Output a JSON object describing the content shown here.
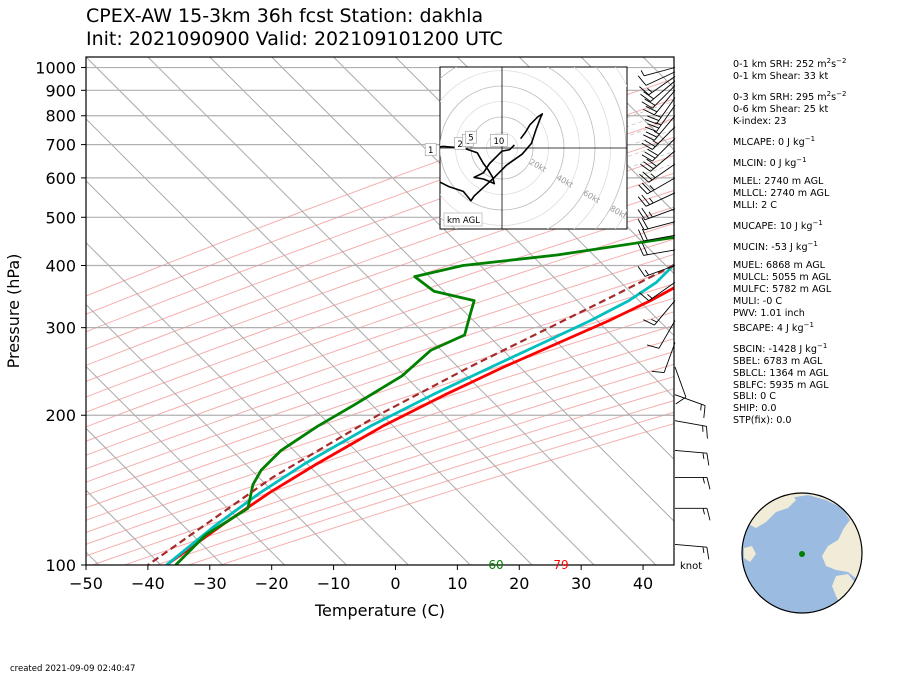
{
  "header": {
    "title_line1": "CPEX-AW 15-3km  36h fcst  Station: dakhla",
    "title_line2": "Init: 2021090900  Valid: 202109101200 UTC"
  },
  "stats": [
    {
      "label": "0-1 km SRH: 252 m",
      "sup": "2",
      "mid": "s",
      "sup2": "−2"
    },
    {
      "label": "0-1 km Shear: 33 kt"
    },
    {
      "label": "0-3 km SRH: 295 m",
      "sup": "2",
      "mid": "s",
      "sup2": "−2",
      "gap": true
    },
    {
      "label": "0-6 km Shear: 25 kt"
    },
    {
      "label": "K-index: 23"
    },
    {
      "label": "MLCAPE: 0 J kg",
      "sup": "−1",
      "gap": true
    },
    {
      "label": "MLCIN: 0 J kg",
      "sup": "−1",
      "gap": true
    },
    {
      "label": "MLEL: 2740 m AGL",
      "gap": true
    },
    {
      "label": "MLLCL: 2740 m AGL"
    },
    {
      "label": "MLLI: 2 C"
    },
    {
      "label": "MUCAPE: 10 J kg",
      "sup": "−1",
      "gap": true
    },
    {
      "label": "MUCIN: -53 J kg",
      "sup": "−1",
      "gap": true
    },
    {
      "label": "MUEL: 6868 m AGL",
      "gap": true
    },
    {
      "label": "MULCL: 5055 m AGL"
    },
    {
      "label": "MULFC: 5782 m AGL"
    },
    {
      "label": "MULI: -0 C"
    },
    {
      "label": "PWV: 1.01 inch"
    },
    {
      "label": "SBCAPE: 4 J kg",
      "sup": "−1"
    },
    {
      "label": "SBCIN: -1428 J kg",
      "sup": "−1",
      "gap": true
    },
    {
      "label": "SBEL: 6783 m AGL"
    },
    {
      "label": "SBLCL: 1364 m AGL"
    },
    {
      "label": "SBLFC: 5935 m AGL"
    },
    {
      "label": "SBLI: 0 C"
    },
    {
      "label": "SHIP: 0.0"
    },
    {
      "label": "STP(fix): 0.0"
    }
  ],
  "footer": {
    "created": "created 2021-09-09 02:40:47"
  },
  "colors": {
    "temperature": "#ff0000",
    "dewpoint": "#008000",
    "wetbulb": "#00bfbf",
    "parcel": "#a52a2a",
    "isotherm": "#aaaaaa",
    "dry_adiabat": "#f4b0b0",
    "moist_adiabat": "#c0c0c0",
    "mixing_ratio": "#8fc98f",
    "globe_ocean": "#9bbbe0",
    "globe_land": "#f0ecd8"
  },
  "chart_data": [
    {
      "type": "line",
      "xlabel": "Temperature (C)",
      "ylabel": "Pressure (hPa)",
      "xlim": [
        -50,
        45
      ],
      "ylim": [
        1050,
        100
      ],
      "y_scale": "log",
      "x_ticks": [
        -50,
        -40,
        -30,
        -20,
        -10,
        0,
        10,
        20,
        30,
        40
      ],
      "y_ticks": [
        100,
        200,
        300,
        400,
        500,
        600,
        700,
        800,
        900,
        1000
      ],
      "skew": "isotherms at 45 degrees",
      "surface_labels": {
        "dewpoint": "60",
        "temperature": "79"
      },
      "wind_unit": "knot",
      "series": [
        {
          "key": "temperature",
          "pressure": [
            985,
            975,
            960,
            940,
            915,
            895,
            870,
            840,
            800,
            760,
            720,
            680,
            640,
            600,
            560,
            520,
            490,
            460,
            430,
            400,
            370,
            340,
            310,
            280,
            250,
            220,
            190,
            160,
            140,
            120,
            100
          ],
          "temp": [
            24.5,
            24.0,
            30.5,
            34.5,
            35.5,
            34.0,
            31.5,
            28.5,
            24.0,
            20.0,
            16.5,
            13.0,
            10.0,
            7.5,
            5.0,
            3.0,
            1.5,
            0.5,
            0.0,
            1.5,
            1.0,
            -1.5,
            -5.0,
            -9.5,
            -14.5,
            -19.5,
            -24.5,
            -29.0,
            -32.0,
            -34.5,
            -37.0
          ]
        },
        {
          "key": "wetbulb",
          "pressure": [
            985,
            970,
            945,
            915,
            880,
            850,
            810,
            770,
            730,
            690,
            650,
            610,
            570,
            535,
            500,
            480,
            455,
            430,
            400,
            370,
            340,
            310,
            280,
            250,
            220,
            190,
            160,
            140,
            120,
            100
          ],
          "temp": [
            19.5,
            18.0,
            16.5,
            16.0,
            16.0,
            15.0,
            13.0,
            11.0,
            9.5,
            8.0,
            6.5,
            5.0,
            3.5,
            1.5,
            0.0,
            -0.5,
            -1.5,
            -3.0,
            -3.5,
            -3.5,
            -5.0,
            -8.0,
            -12.0,
            -16.5,
            -21.5,
            -26.5,
            -31.0,
            -33.5,
            -35.5,
            -37.0
          ]
        },
        {
          "key": "dewpoint",
          "pressure": [
            985,
            975,
            970,
            960,
            935,
            900,
            880,
            860,
            820,
            780,
            740,
            700,
            660,
            620,
            590,
            550,
            520,
            500,
            490,
            460,
            420,
            400,
            380,
            355,
            340,
            320,
            290,
            270,
            240,
            210,
            190,
            170,
            155,
            145,
            130,
            115,
            100
          ],
          "temp": [
            16.0,
            15.5,
            10.5,
            9.5,
            5.5,
            1.5,
            2.5,
            4.0,
            5.0,
            4.5,
            5.0,
            5.0,
            5.0,
            5.0,
            5.0,
            4.0,
            2.5,
            -3.0,
            0.5,
            -6.0,
            -24.0,
            -37.5,
            -43.5,
            -38.0,
            -30.0,
            -28.5,
            -26.0,
            -29.0,
            -29.5,
            -32.5,
            -35.0,
            -37.0,
            -37.0,
            -36.0,
            -33.0,
            -35.5,
            -35.5
          ]
        },
        {
          "key": "parcel",
          "dashed": true,
          "pressure": [
            985,
            900,
            800,
            700,
            600,
            500,
            460,
            400,
            350,
            300,
            250,
            200,
            150,
            100
          ],
          "temp": [
            24.5,
            24.5,
            22.0,
            15.0,
            7.5,
            1.0,
            0.0,
            -3.5,
            -8.0,
            -13.5,
            -20.0,
            -27.0,
            -34.0,
            -40.0
          ]
        }
      ],
      "wind_barbs": [
        {
          "p": 1000,
          "speed": 5,
          "dir": 255
        },
        {
          "p": 980,
          "speed": 10,
          "dir": 245
        },
        {
          "p": 960,
          "speed": 15,
          "dir": 235
        },
        {
          "p": 940,
          "speed": 20,
          "dir": 230
        },
        {
          "p": 920,
          "speed": 20,
          "dir": 225
        },
        {
          "p": 900,
          "speed": 20,
          "dir": 220
        },
        {
          "p": 870,
          "speed": 25,
          "dir": 215
        },
        {
          "p": 840,
          "speed": 25,
          "dir": 215
        },
        {
          "p": 800,
          "speed": 25,
          "dir": 220
        },
        {
          "p": 760,
          "speed": 25,
          "dir": 225
        },
        {
          "p": 720,
          "speed": 30,
          "dir": 225
        },
        {
          "p": 680,
          "speed": 30,
          "dir": 230
        },
        {
          "p": 640,
          "speed": 25,
          "dir": 235
        },
        {
          "p": 600,
          "speed": 25,
          "dir": 240
        },
        {
          "p": 560,
          "speed": 25,
          "dir": 245
        },
        {
          "p": 520,
          "speed": 25,
          "dir": 250
        },
        {
          "p": 490,
          "speed": 20,
          "dir": 255
        },
        {
          "p": 460,
          "speed": 20,
          "dir": 260
        },
        {
          "p": 430,
          "speed": 20,
          "dir": 260
        },
        {
          "p": 400,
          "speed": 15,
          "dir": 250
        },
        {
          "p": 370,
          "speed": 15,
          "dir": 235
        },
        {
          "p": 340,
          "speed": 15,
          "dir": 220
        },
        {
          "p": 310,
          "speed": 10,
          "dir": 210
        },
        {
          "p": 280,
          "speed": 10,
          "dir": 200
        },
        {
          "p": 250,
          "speed": 10,
          "dir": 160
        },
        {
          "p": 220,
          "speed": 15,
          "dir": 110
        },
        {
          "p": 195,
          "speed": 15,
          "dir": 100
        },
        {
          "p": 170,
          "speed": 15,
          "dir": 95
        },
        {
          "p": 150,
          "speed": 15,
          "dir": 90
        },
        {
          "p": 130,
          "speed": 15,
          "dir": 90
        },
        {
          "p": 110,
          "speed": 15,
          "dir": 95
        }
      ]
    },
    {
      "type": "line",
      "title": "hodograph",
      "xlim": [
        -60,
        60
      ],
      "ylim": [
        -60,
        60
      ],
      "unit_label": "km AGL",
      "ring_labels": [
        "20kt",
        "40kt",
        "60kt",
        "80kt"
      ],
      "points": [
        {
          "u": 8,
          "v": 2
        },
        {
          "u": 5,
          "v": -1
        },
        {
          "u": 0,
          "v": -2
        },
        {
          "u": -4,
          "v": -6
        },
        {
          "u": -8,
          "v": -10
        },
        {
          "u": -12,
          "v": -16
        },
        {
          "u": -18,
          "v": -19
        },
        {
          "u": -12,
          "v": -20
        },
        {
          "u": -7,
          "v": -22
        },
        {
          "u": -5,
          "v": -23
        },
        {
          "u": -6,
          "v": -19
        },
        {
          "u": -9,
          "v": -14
        },
        {
          "u": -12,
          "v": -10
        },
        {
          "u": -16,
          "v": -3
        },
        {
          "u": -25,
          "v": 0
        },
        {
          "u": -38,
          "v": 1
        },
        {
          "u": -52,
          "v": -1
        },
        {
          "u": -54,
          "v": 0
        },
        {
          "u": -54,
          "v": -10
        },
        {
          "u": -52,
          "v": -16
        },
        {
          "u": -44,
          "v": -20
        },
        {
          "u": -34,
          "v": -25
        },
        {
          "u": -25,
          "v": -28
        },
        {
          "u": -20,
          "v": -34
        },
        {
          "u": -18,
          "v": -31
        },
        {
          "u": -5,
          "v": -19
        },
        {
          "u": 3,
          "v": -11
        },
        {
          "u": 13,
          "v": -4
        },
        {
          "u": 19,
          "v": 3
        },
        {
          "u": 22,
          "v": 12
        },
        {
          "u": 25,
          "v": 20
        },
        {
          "u": 26,
          "v": 22
        },
        {
          "u": 23,
          "v": 20
        },
        {
          "u": 18,
          "v": 15
        },
        {
          "u": 15,
          "v": 10
        },
        {
          "u": 12,
          "v": 6
        }
      ],
      "height_labels": [
        {
          "text": "1",
          "u": -46,
          "v": -1
        },
        {
          "text": "2",
          "u": -27,
          "v": 3
        },
        {
          "text": "6",
          "u": -22,
          "v": 5
        },
        {
          "text": "5",
          "u": -20,
          "v": 7
        },
        {
          "text": "10",
          "u": -2,
          "v": 5
        }
      ]
    }
  ]
}
